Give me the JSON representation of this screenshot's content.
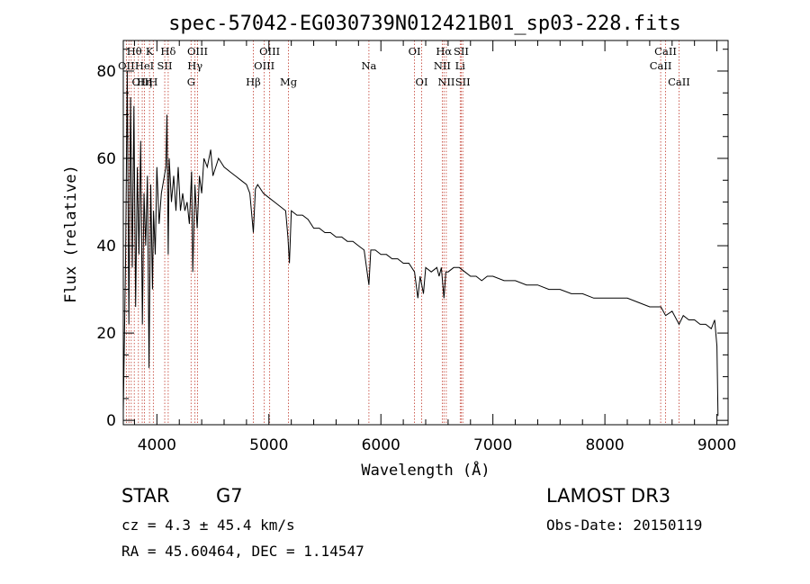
{
  "chart_data": {
    "type": "line",
    "title": "spec-57042-EG030739N012421B01_sp03-228.fits",
    "xlabel": "Wavelength (Å)",
    "ylabel": "Flux (relative)",
    "xlim": [
      3700,
      9100
    ],
    "ylim": [
      -1,
      87
    ],
    "x_ticks": [
      4000,
      5000,
      6000,
      7000,
      8000,
      9000
    ],
    "y_ticks": [
      0,
      20,
      40,
      60,
      80
    ],
    "series": [
      {
        "name": "flux",
        "x": [
          3700,
          3720,
          3735,
          3750,
          3765,
          3780,
          3795,
          3810,
          3825,
          3840,
          3855,
          3870,
          3885,
          3900,
          3915,
          3930,
          3945,
          3960,
          3970,
          3985,
          4000,
          4020,
          4040,
          4060,
          4080,
          4090,
          4101,
          4110,
          4130,
          4150,
          4170,
          4190,
          4210,
          4230,
          4250,
          4270,
          4290,
          4310,
          4320,
          4340,
          4360,
          4380,
          4400,
          4420,
          4450,
          4480,
          4500,
          4550,
          4600,
          4650,
          4700,
          4750,
          4800,
          4830,
          4861,
          4880,
          4900,
          4950,
          5000,
          5050,
          5100,
          5150,
          5170,
          5183,
          5200,
          5250,
          5300,
          5350,
          5400,
          5450,
          5500,
          5550,
          5600,
          5650,
          5700,
          5750,
          5800,
          5850,
          5893,
          5910,
          5950,
          6000,
          6050,
          6100,
          6150,
          6200,
          6250,
          6300,
          6330,
          6350,
          6380,
          6400,
          6450,
          6500,
          6520,
          6540,
          6563,
          6580,
          6600,
          6650,
          6700,
          6750,
          6800,
          6850,
          6900,
          6950,
          7000,
          7100,
          7200,
          7300,
          7400,
          7500,
          7600,
          7700,
          7800,
          7900,
          8000,
          8100,
          8200,
          8300,
          8400,
          8500,
          8542,
          8600,
          8662,
          8700,
          8750,
          8800,
          8850,
          8900,
          8950,
          8980,
          9000,
          9010
        ],
        "y": [
          2,
          36,
          80,
          22,
          74,
          35,
          72,
          26,
          58,
          38,
          64,
          22,
          52,
          40,
          56,
          12,
          54,
          30,
          48,
          38,
          58,
          45,
          52,
          55,
          58,
          70,
          38,
          60,
          50,
          56,
          48,
          58,
          48,
          52,
          48,
          50,
          45,
          57,
          34,
          54,
          44,
          56,
          52,
          60,
          58,
          62,
          56,
          60,
          58,
          57,
          56,
          55,
          54,
          52,
          43,
          53,
          54,
          52,
          51,
          50,
          49,
          48,
          42,
          36,
          48,
          47,
          47,
          46,
          44,
          44,
          43,
          43,
          42,
          42,
          41,
          41,
          40,
          39,
          31,
          39,
          39,
          38,
          38,
          37,
          37,
          36,
          36,
          34,
          28,
          33,
          29,
          35,
          34,
          35,
          33,
          35,
          28,
          34,
          34,
          35,
          35,
          34,
          33,
          33,
          32,
          33,
          33,
          32,
          32,
          31,
          31,
          30,
          30,
          29,
          29,
          28,
          28,
          28,
          28,
          27,
          26,
          26,
          24,
          25,
          22,
          24,
          23,
          23,
          22,
          22,
          21,
          23,
          17,
          1
        ]
      }
    ],
    "line_markers": [
      {
        "label": "OII",
        "wavelength": 3727,
        "row": 2
      },
      {
        "label": "Hθ",
        "wavelength": 3798,
        "row": 1
      },
      {
        "label": "OIII",
        "wavelength": 3869,
        "row": 3
      },
      {
        "label": "K",
        "wavelength": 3934,
        "row": 1
      },
      {
        "label": "Hη",
        "wavelength": 3889,
        "row": 3
      },
      {
        "label": "HeI",
        "wavelength": 3889,
        "row": 2
      },
      {
        "label": "H",
        "wavelength": 3968,
        "row": 3
      },
      {
        "label": "SII",
        "wavelength": 4070,
        "row": 2
      },
      {
        "label": "Hδ",
        "wavelength": 4101,
        "row": 1
      },
      {
        "label": "OIII",
        "wavelength": 4363,
        "row": 1
      },
      {
        "label": "Hγ",
        "wavelength": 4340,
        "row": 2
      },
      {
        "label": "G",
        "wavelength": 4305,
        "row": 3
      },
      {
        "label": "Hβ",
        "wavelength": 4861,
        "row": 3
      },
      {
        "label": "OIII",
        "wavelength": 5007,
        "row": 1
      },
      {
        "label": "OIII",
        "wavelength": 4959,
        "row": 2
      },
      {
        "label": "Mg",
        "wavelength": 5175,
        "row": 3
      },
      {
        "label": "Na",
        "wavelength": 5893,
        "row": 2
      },
      {
        "label": "OI",
        "wavelength": 6300,
        "row": 1
      },
      {
        "label": "OI",
        "wavelength": 6364,
        "row": 3
      },
      {
        "label": "Hα",
        "wavelength": 6563,
        "row": 1
      },
      {
        "label": "SII",
        "wavelength": 6717,
        "row": 1
      },
      {
        "label": "NII",
        "wavelength": 6548,
        "row": 2
      },
      {
        "label": "Li",
        "wavelength": 6708,
        "row": 2
      },
      {
        "label": "NII",
        "wavelength": 6584,
        "row": 3
      },
      {
        "label": "SII",
        "wavelength": 6731,
        "row": 3
      },
      {
        "label": "CaII",
        "wavelength": 8542,
        "row": 1
      },
      {
        "label": "CaII",
        "wavelength": 8498,
        "row": 2
      },
      {
        "label": "CaII",
        "wavelength": 8662,
        "row": 3
      }
    ],
    "marker_lines": [
      3727,
      3750,
      3771,
      3798,
      3835,
      3869,
      3889,
      3934,
      3968,
      4070,
      4101,
      4305,
      4340,
      4363,
      4861,
      4959,
      5007,
      5175,
      5893,
      6300,
      6364,
      6548,
      6563,
      6584,
      6708,
      6717,
      6731,
      8498,
      8542,
      8662
    ]
  },
  "info": {
    "object_type": "STAR",
    "subclass": "G7",
    "survey": "LAMOST DR3",
    "cz": "cz = 4.3 ± 45.4 km/s",
    "obs_date": "Obs-Date: 20150119",
    "radec": "RA =  45.60464, DEC =    1.14547"
  }
}
